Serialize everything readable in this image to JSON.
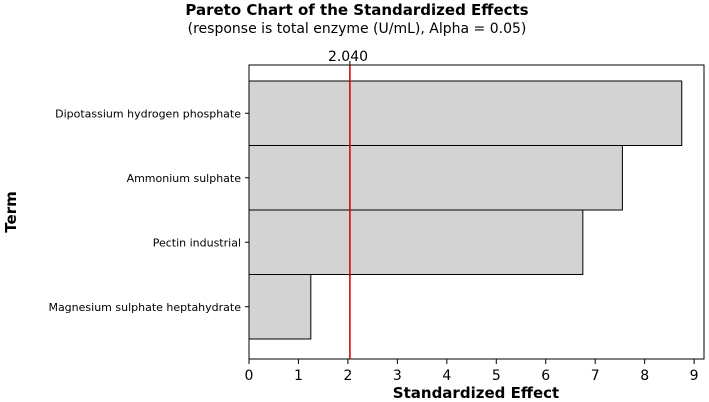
{
  "chart_data": {
    "type": "bar",
    "orientation": "horizontal",
    "title": "Pareto Chart of the Standardized Effects",
    "subtitle": "(response is total enzyme (U/mL), Alpha = 0.05)",
    "xlabel": "Standardized Effect",
    "ylabel": "Term",
    "categories": [
      "Dipotassium hydrogen phosphate",
      "Ammonium sulphate",
      "Pectin industrial",
      "Magnesium sulphate heptahydrate"
    ],
    "values": [
      8.75,
      7.55,
      6.75,
      1.25
    ],
    "xlim": [
      0,
      9.2
    ],
    "xticks": [
      "0",
      "1",
      "2",
      "3",
      "4",
      "5",
      "6",
      "7",
      "8",
      "9"
    ],
    "reference_line": {
      "value": 2.04,
      "label": "2.040",
      "color": "#cc0000"
    },
    "bar_color": "#d3d3d3",
    "grid": false
  }
}
